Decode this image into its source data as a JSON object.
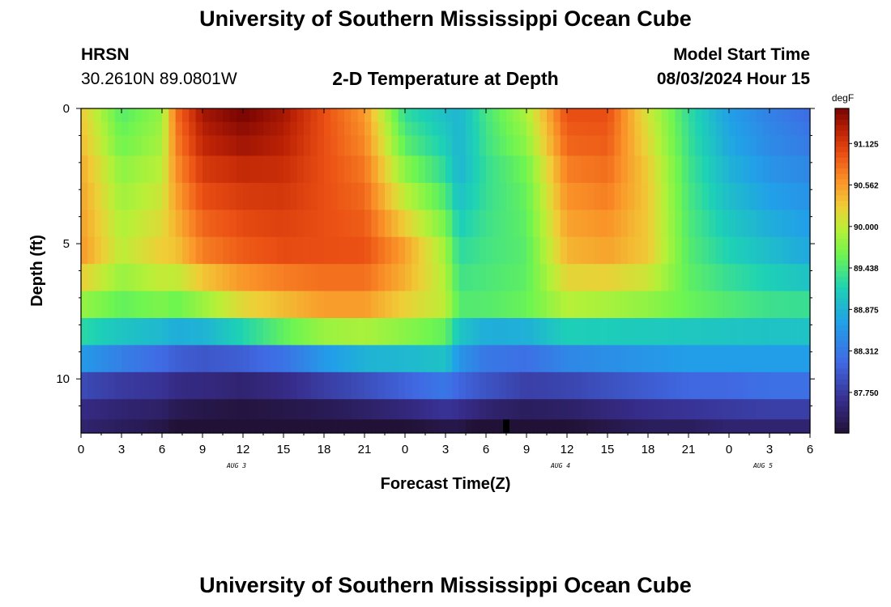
{
  "header": {
    "title": "University of Southern Mississippi Ocean Cube",
    "station": "HRSN",
    "coords": "30.2610N  89.0801W",
    "chart_title": "2-D Temperature at Depth",
    "model_label": "Model Start Time",
    "model_time": "08/03/2024 Hour 15"
  },
  "footer": {
    "title": "University of Southern Mississippi Ocean Cube"
  },
  "chart_data": {
    "type": "heatmap",
    "title": "2-D Temperature at Depth",
    "xlabel": "Forecast Time(Z)",
    "ylabel": "Depth (ft)",
    "x_hours_range": [
      0,
      54
    ],
    "y_depth_range_ft": [
      0,
      12
    ],
    "x_tick_labels": [
      "0",
      "3",
      "6",
      "9",
      "12",
      "15",
      "18",
      "21",
      "0",
      "3",
      "6",
      "9",
      "12",
      "15",
      "18",
      "21",
      "0",
      "3",
      "6"
    ],
    "y_tick_labels": [
      "0",
      "5",
      "10"
    ],
    "y_tick_values": [
      0,
      5,
      10
    ],
    "date_labels": [
      {
        "text": "AUG 3",
        "hour": 12
      },
      {
        "text": "AUG 4",
        "hour": 36
      },
      {
        "text": "AUG 5",
        "hour": 51
      }
    ],
    "colorbar": {
      "units": "degF",
      "range": [
        87.2,
        91.6
      ],
      "tick_values": [
        91.125,
        90.562,
        90.0,
        89.438,
        88.875,
        88.312,
        87.75
      ],
      "tick_labels": [
        "91.125",
        "90.562",
        "90.000",
        "89.438",
        "88.875",
        "88.312",
        "87.750"
      ]
    },
    "depth_rows_ft": [
      0.25,
      0.75,
      1.25,
      2.25,
      3.25,
      4.25,
      5.25,
      6.25,
      7.25,
      8.25,
      9.25,
      10.25,
      11.25,
      12.0
    ],
    "profile_hours": [
      0,
      3,
      6,
      7,
      9,
      12,
      15,
      18,
      21,
      24,
      27,
      28,
      30,
      33,
      36,
      39,
      42,
      45,
      48,
      51,
      54
    ],
    "profiles_degF": [
      [
        90.3,
        90.5,
        90.6,
        89.7,
        89.1,
        88.5,
        87.7,
        87.5
      ],
      [
        89.5,
        89.8,
        90.0,
        89.5,
        88.9,
        88.2,
        87.6,
        87.4
      ],
      [
        89.8,
        90.0,
        90.3,
        89.6,
        88.7,
        88.0,
        87.6,
        87.3
      ],
      [
        90.8,
        90.6,
        90.3,
        89.5,
        88.6,
        87.9,
        87.5,
        87.2
      ],
      [
        91.4,
        91.1,
        90.7,
        89.7,
        88.6,
        87.8,
        87.5,
        87.1
      ],
      [
        91.6,
        91.2,
        90.9,
        90.1,
        88.9,
        87.8,
        87.4,
        87.1
      ],
      [
        91.4,
        91.2,
        91.0,
        90.3,
        89.3,
        87.9,
        87.5,
        87.1
      ],
      [
        91.0,
        91.0,
        91.0,
        90.5,
        89.6,
        88.3,
        87.6,
        87.1
      ],
      [
        90.6,
        90.8,
        91.0,
        90.5,
        89.7,
        88.6,
        87.7,
        87.2
      ],
      [
        89.3,
        89.8,
        90.6,
        90.2,
        89.6,
        88.7,
        87.9,
        87.2
      ],
      [
        89.0,
        89.3,
        89.9,
        90.0,
        89.4,
        88.9,
        88.1,
        87.3
      ],
      [
        88.9,
        88.9,
        89.3,
        89.5,
        88.9,
        88.5,
        88.0,
        87.3
      ],
      [
        89.4,
        89.3,
        89.4,
        89.5,
        88.6,
        88.2,
        87.9,
        87.1
      ],
      [
        89.9,
        89.6,
        89.5,
        89.6,
        88.6,
        88.1,
        87.7,
        87.1
      ],
      [
        91.0,
        90.7,
        90.4,
        89.9,
        88.9,
        88.3,
        87.7,
        87.2
      ],
      [
        91.0,
        90.8,
        90.5,
        89.8,
        88.9,
        88.4,
        87.8,
        87.3
      ],
      [
        90.1,
        90.3,
        90.3,
        89.7,
        88.9,
        88.5,
        87.9,
        87.4
      ],
      [
        89.3,
        89.4,
        89.5,
        89.6,
        88.9,
        88.6,
        88.0,
        87.4
      ],
      [
        88.7,
        88.9,
        89.2,
        89.5,
        88.9,
        88.6,
        88.0,
        87.5
      ],
      [
        88.4,
        88.6,
        89.0,
        89.4,
        88.9,
        88.6,
        88.1,
        87.5
      ],
      [
        88.2,
        88.5,
        88.8,
        89.4,
        88.9,
        88.6,
        88.1,
        87.5
      ]
    ],
    "profile_depths_ft": [
      0.25,
      2.5,
      5.5,
      7.5,
      8.5,
      9.5,
      10.5,
      12.0
    ],
    "marker_hour": 31.5
  }
}
